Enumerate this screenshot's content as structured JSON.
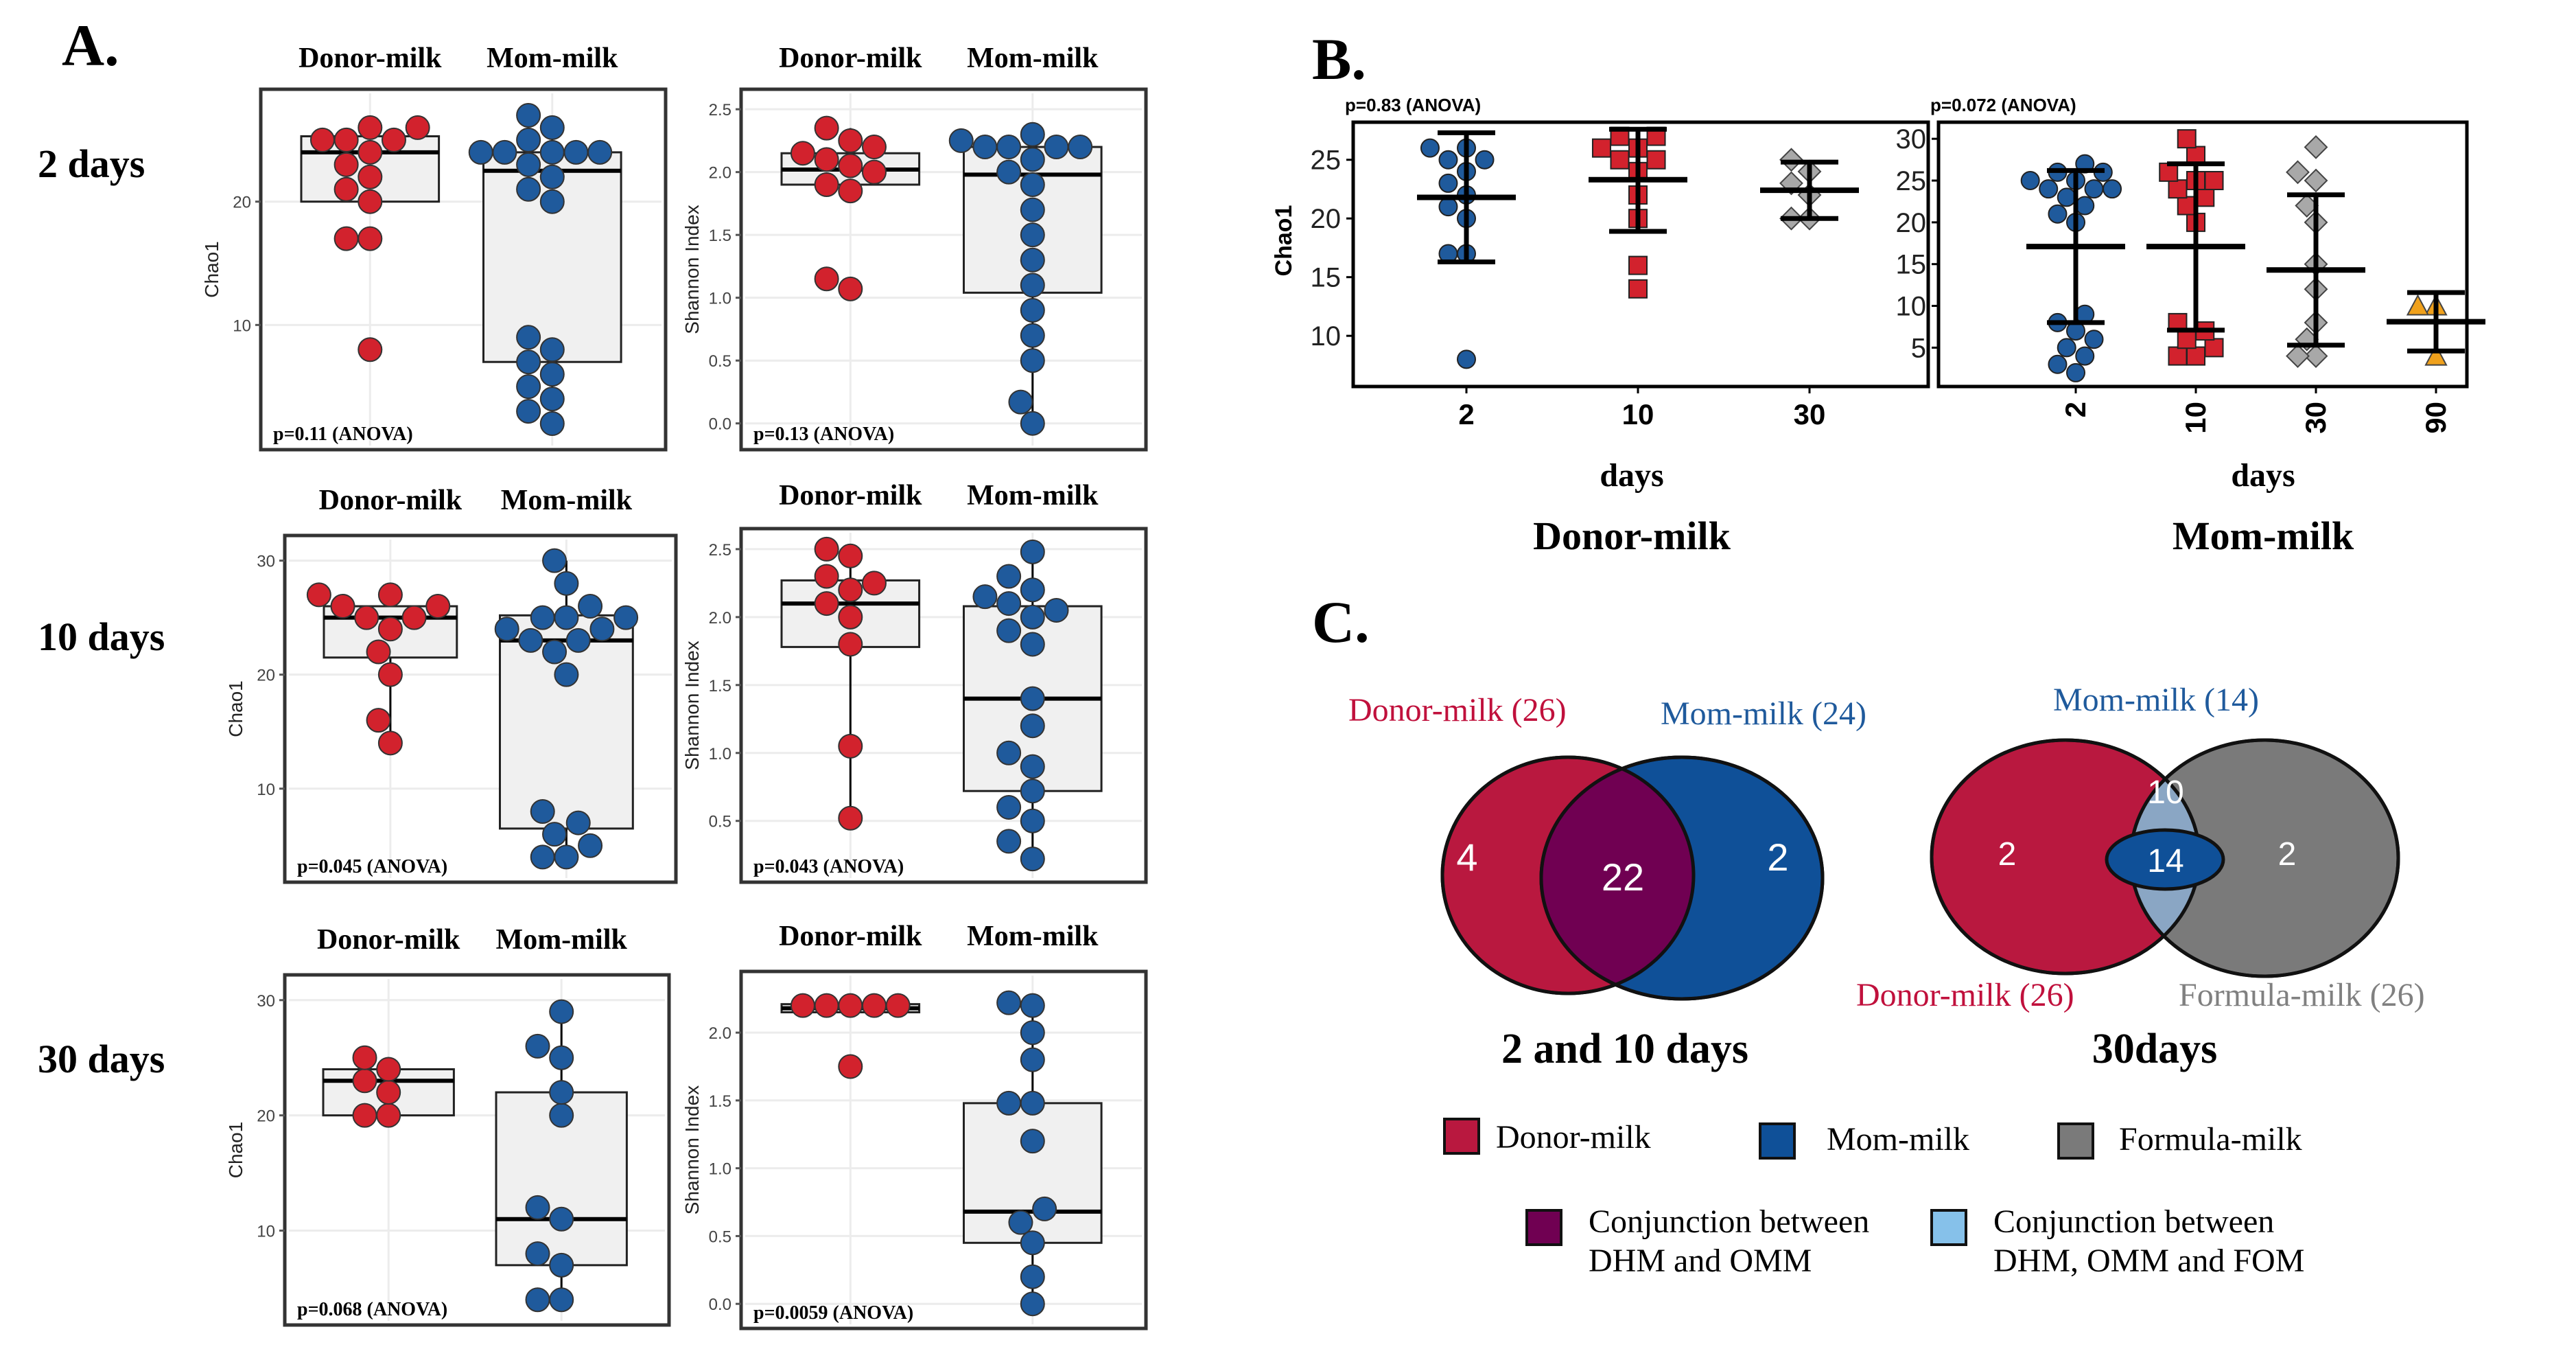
{
  "figure": {
    "panel_a_label": "A.",
    "panel_b_label": "B.",
    "panel_c_label": "C.",
    "row_labels": [
      "2 days",
      "10 days",
      "30 days"
    ]
  },
  "colors": {
    "donor": "#d2222d",
    "mom": "#1f5a9c",
    "formula": "#a8a8a8",
    "orange": "#f0a11c",
    "box_fill": "#f0f0f0",
    "venn_donor": "#b9183f",
    "venn_mom": "#0f5098",
    "venn_formula": "#7a7a7a",
    "venn_conj_dm": "#700052",
    "venn_conj_all": "#8aa6c4",
    "legend_conj_all": "#86c1ea",
    "label_donor": "#c0103c",
    "label_mom": "#1f5a9c",
    "label_formula": "#808080"
  },
  "chart_data": [
    {
      "type": "box",
      "id": "a-2d-chao1",
      "ylabel": "Chao1",
      "yticks": [
        10,
        20
      ],
      "ylim": [
        1,
        28
      ],
      "categories": [
        "Donor-milk",
        "Mom-milk"
      ],
      "pvalue": "p=0.11 (ANOVA)",
      "boxes": [
        {
          "q1": 20,
          "median": 24,
          "q3": 25.3,
          "wlo": 24,
          "whi": 24,
          "points": [
            8,
            17,
            17,
            20,
            21,
            22,
            23,
            24,
            25,
            25,
            25,
            26,
            26
          ]
        },
        {
          "q1": 7,
          "median": 22.5,
          "q3": 24,
          "wlo": 2,
          "whi": 27,
          "points": [
            2,
            3,
            4,
            5,
            6,
            7,
            8,
            9,
            20,
            21,
            22,
            23,
            24,
            24,
            24,
            24,
            24,
            25,
            26,
            27
          ]
        }
      ]
    },
    {
      "type": "box",
      "id": "a-2d-shannon",
      "ylabel": "Shannon Index",
      "yticks": [
        0.0,
        0.5,
        1.0,
        1.5,
        2.0,
        2.5
      ],
      "ylim": [
        -0.1,
        2.55
      ],
      "categories": [
        "Donor-milk",
        "Mom-milk"
      ],
      "pvalue": "p=0.13 (ANOVA)",
      "boxes": [
        {
          "q1": 1.9,
          "median": 2.02,
          "q3": 2.15,
          "wlo": 1.85,
          "whi": 2.35,
          "points": [
            1.07,
            1.15,
            1.85,
            1.9,
            2.0,
            2.05,
            2.1,
            2.15,
            2.2,
            2.25,
            2.35
          ]
        },
        {
          "q1": 1.04,
          "median": 1.98,
          "q3": 2.2,
          "wlo": 0.0,
          "whi": 2.3,
          "points": [
            0.0,
            0.17,
            0.5,
            0.7,
            0.9,
            1.1,
            1.3,
            1.5,
            1.7,
            1.9,
            2.0,
            2.1,
            2.2,
            2.2,
            2.2,
            2.2,
            2.25,
            2.3
          ]
        }
      ]
    },
    {
      "type": "box",
      "id": "a-10d-chao1",
      "ylabel": "Chao1",
      "yticks": [
        10,
        20,
        30
      ],
      "ylim": [
        3,
        31
      ],
      "categories": [
        "Donor-milk",
        "Mom-milk"
      ],
      "pvalue": "p=0.045 (ANOVA)",
      "boxes": [
        {
          "q1": 21.5,
          "median": 25,
          "q3": 26,
          "wlo": 14,
          "whi": 27,
          "points": [
            14,
            16,
            20,
            22,
            24,
            25,
            25,
            26,
            26,
            27,
            27
          ]
        },
        {
          "q1": 6.5,
          "median": 23,
          "q3": 25.2,
          "wlo": 4,
          "whi": 30,
          "points": [
            4,
            4,
            5,
            6,
            7,
            8,
            20,
            22,
            23,
            23,
            24,
            24,
            25,
            25,
            25,
            26,
            28,
            30
          ]
        }
      ]
    },
    {
      "type": "box",
      "id": "a-10d-shannon",
      "ylabel": "Shannon Index",
      "yticks": [
        0.5,
        1.0,
        1.5,
        2.0,
        2.5
      ],
      "ylim": [
        0.15,
        2.55
      ],
      "categories": [
        "Donor-milk",
        "Mom-milk"
      ],
      "pvalue": "p=0.043 (ANOVA)",
      "boxes": [
        {
          "q1": 1.78,
          "median": 2.1,
          "q3": 2.27,
          "wlo": 0.52,
          "whi": 2.5,
          "points": [
            0.52,
            1.05,
            1.8,
            2.0,
            2.1,
            2.2,
            2.25,
            2.3,
            2.45,
            2.5
          ]
        },
        {
          "q1": 0.72,
          "median": 1.4,
          "q3": 2.08,
          "wlo": 0.22,
          "whi": 2.48,
          "points": [
            0.22,
            0.35,
            0.5,
            0.6,
            0.72,
            0.9,
            1.0,
            1.2,
            1.4,
            1.8,
            1.9,
            2.0,
            2.05,
            2.1,
            2.15,
            2.2,
            2.3,
            2.48
          ]
        }
      ]
    },
    {
      "type": "box",
      "id": "a-30d-chao1",
      "ylabel": "Chao1",
      "yticks": [
        10,
        20,
        30
      ],
      "ylim": [
        3,
        31
      ],
      "categories": [
        "Donor-milk",
        "Mom-milk"
      ],
      "pvalue": "p=0.068 (ANOVA)",
      "boxes": [
        {
          "q1": 20,
          "median": 23,
          "q3": 24,
          "wlo": 20,
          "whi": 25,
          "points": [
            20,
            20,
            22,
            23,
            24,
            25
          ]
        },
        {
          "q1": 7,
          "median": 11,
          "q3": 22,
          "wlo": 4,
          "whi": 29,
          "points": [
            4,
            4,
            7,
            8,
            11,
            12,
            20,
            22,
            25,
            26,
            29
          ]
        }
      ]
    },
    {
      "type": "box",
      "id": "a-30d-shannon",
      "ylabel": "Shannon Index",
      "yticks": [
        0.0,
        0.5,
        1.0,
        1.5,
        2.0
      ],
      "ylim": [
        -0.08,
        2.35
      ],
      "categories": [
        "Donor-milk",
        "Mom-milk"
      ],
      "pvalue": "p=0.0059 (ANOVA)",
      "boxes": [
        {
          "q1": 2.15,
          "median": 2.18,
          "q3": 2.21,
          "wlo": 2.15,
          "whi": 2.21,
          "points": [
            1.75,
            2.2,
            2.2,
            2.2,
            2.2,
            2.2
          ]
        },
        {
          "q1": 0.45,
          "median": 0.68,
          "q3": 1.48,
          "wlo": 0.0,
          "whi": 2.22,
          "points": [
            0.0,
            0.2,
            0.45,
            0.6,
            0.7,
            1.2,
            1.48,
            1.48,
            1.8,
            2.0,
            2.2,
            2.22
          ]
        }
      ]
    },
    {
      "type": "scatter",
      "id": "b-donor",
      "title": "Donor-milk",
      "xlabel": "days",
      "ylabel": "Chao1",
      "pvalue": "p=0.83 (ANOVA)",
      "yticks": [
        10,
        15,
        20,
        25
      ],
      "ylim": [
        6.5,
        27.5
      ],
      "groups": [
        {
          "x": "2",
          "color": "mom",
          "shape": "circle",
          "mean": 21.8,
          "sd_lo": 16.3,
          "sd_hi": 27.3,
          "points": [
            8,
            17,
            17,
            20,
            21,
            22,
            23,
            24,
            25,
            25,
            26,
            26
          ]
        },
        {
          "x": "10",
          "color": "donor",
          "shape": "square",
          "mean": 23.3,
          "sd_lo": 18.9,
          "sd_hi": 27.6,
          "points": [
            14,
            16,
            20,
            22,
            24,
            25,
            25,
            26,
            26,
            27,
            27
          ]
        },
        {
          "x": "30",
          "color": "formula",
          "shape": "diamond",
          "mean": 22.4,
          "sd_lo": 20,
          "sd_hi": 24.8,
          "points": [
            20,
            20,
            22,
            23,
            24,
            25
          ]
        }
      ]
    },
    {
      "type": "scatter",
      "id": "b-mom",
      "title": "Mom-milk",
      "xlabel": "days",
      "pvalue": "p=0.072 (ANOVA)",
      "yticks": [
        5,
        10,
        15,
        20,
        25,
        30
      ],
      "ylim": [
        1.5,
        31
      ],
      "groups": [
        {
          "x": "2",
          "color": "mom",
          "shape": "circle",
          "mean": 17.1,
          "sd_lo": 8,
          "sd_hi": 26.2,
          "points": [
            2,
            3,
            4,
            5,
            6,
            7,
            8,
            9,
            20,
            21,
            22,
            23,
            24,
            24,
            24,
            25,
            25,
            26,
            26,
            27
          ]
        },
        {
          "x": "10",
          "color": "donor",
          "shape": "square",
          "mean": 17.1,
          "sd_lo": 7.1,
          "sd_hi": 27,
          "points": [
            4,
            4,
            5,
            6,
            7,
            8,
            20,
            22,
            23,
            24,
            25,
            25,
            26,
            28,
            30
          ]
        },
        {
          "x": "30",
          "color": "formula",
          "shape": "diamond",
          "mean": 14.3,
          "sd_lo": 5.3,
          "sd_hi": 23.3,
          "points": [
            4,
            4,
            6,
            8,
            12,
            15,
            20,
            22,
            25,
            26,
            29
          ]
        },
        {
          "x": "90",
          "color": "orange",
          "shape": "triangle",
          "mean": 8.1,
          "sd_lo": 4.6,
          "sd_hi": 11.6,
          "points": [
            4,
            10,
            10
          ]
        }
      ]
    }
  ],
  "venn_left": {
    "label_donor": "Donor-milk (26)",
    "label_mom": "Mom-milk (24)",
    "n_donor_only": "4",
    "n_shared": "22",
    "n_mom_only": "2",
    "title": "2 and 10 days"
  },
  "venn_right": {
    "label_mom": "Mom-milk (14)",
    "label_donor": "Donor-milk (26)",
    "label_formula": "Formula-milk (26)",
    "n_donor_only": "2",
    "n_donor_formula": "10",
    "n_all": "14",
    "n_formula_only": "2",
    "title": "30days"
  },
  "legend": {
    "donor": "Donor-milk",
    "mom": "Mom-milk",
    "formula": "Formula-milk",
    "conj_dm_1": "Conjunction between",
    "conj_dm_2": "DHM and OMM",
    "conj_all_1": "Conjunction between",
    "conj_all_2": "DHM, OMM and FOM"
  }
}
